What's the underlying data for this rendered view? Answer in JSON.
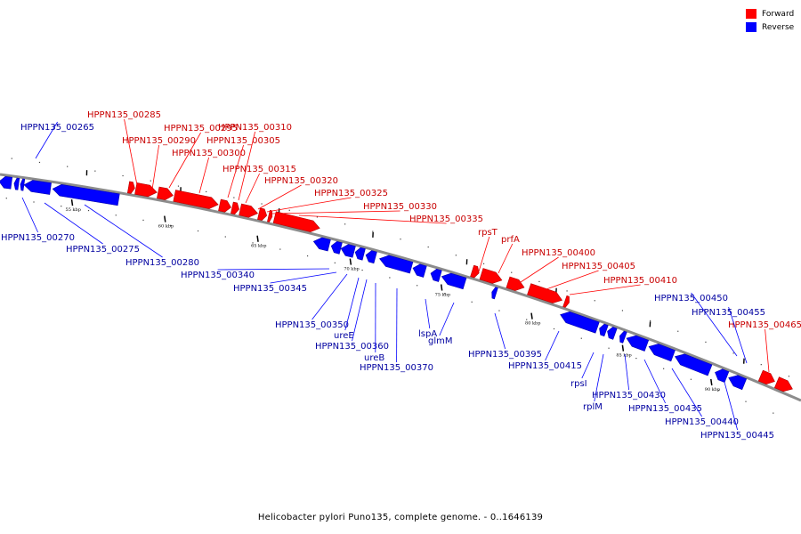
{
  "colors": {
    "forward": "#ff0000",
    "reverse": "#0000ff",
    "forward_text": "#c80000",
    "reverse_text": "#0000a0",
    "backbone": "#8c8c8c"
  },
  "legend": [
    {
      "label": "Forward",
      "color": "#ff0000"
    },
    {
      "label": "Reverse",
      "color": "#0000ff"
    }
  ],
  "caption": "Helicobacter pylori Puno135, complete genome. - 0..1646139",
  "ruler": [
    {
      "label": "55 kbp",
      "pos": 55
    },
    {
      "label": "60 kbp",
      "pos": 60
    },
    {
      "label": "65 kbp",
      "pos": 65
    },
    {
      "label": "70 kbp",
      "pos": 70
    },
    {
      "label": "75 kbp",
      "pos": 75
    },
    {
      "label": "80 kbp",
      "pos": 80
    },
    {
      "label": "85 kbp",
      "pos": 85
    },
    {
      "label": "90 kbp",
      "pos": 90
    }
  ],
  "forward_labels": [
    "HPPN135_00285",
    "HPPN135_00290",
    "HPPN135_00295",
    "HPPN135_00300",
    "HPPN135_00305",
    "HPPN135_00310",
    "HPPN135_00315",
    "HPPN135_00320",
    "HPPN135_00325",
    "HPPN135_00330",
    "HPPN135_00335",
    "rpsT",
    "prfA",
    "HPPN135_00400",
    "HPPN135_00405",
    "HPPN135_00410",
    "HPPN135_00465"
  ],
  "reverse_labels": [
    "HPPN135_00265",
    "HPPN135_00270",
    "HPPN135_00275",
    "HPPN135_00280",
    "HPPN135_00340",
    "HPPN135_00345",
    "HPPN135_00350",
    "ureE",
    "HPPN135_00360",
    "ureB",
    "HPPN135_00370",
    "lspA",
    "glmM",
    "HPPN135_00395",
    "HPPN135_00415",
    "rpsI",
    "rplM",
    "HPPN135_00430",
    "HPPN135_00435",
    "HPPN135_00440",
    "HPPN135_00445",
    "HPPN135_00450",
    "HPPN135_00455"
  ]
}
